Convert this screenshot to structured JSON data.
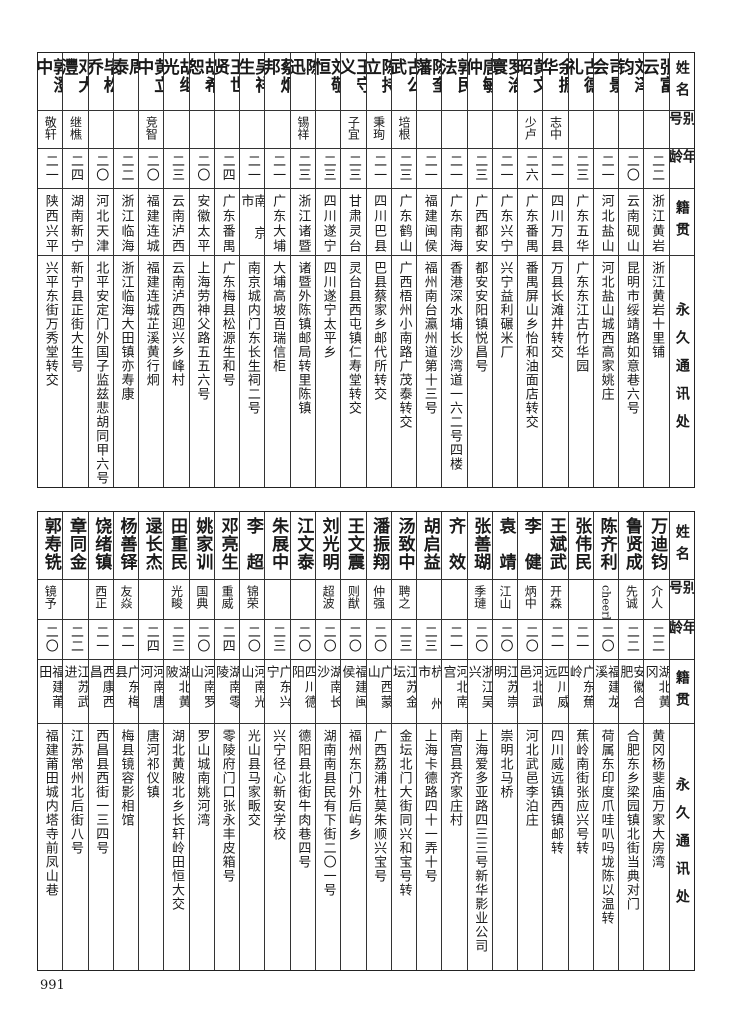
{
  "headers": [
    "姓名",
    "别号",
    "年龄",
    "籍贯",
    "永久通讯处"
  ],
  "top_table": [
    [
      "张富云",
      "",
      "二二",
      "浙江黄岩",
      "浙江黄岩十里铺"
    ],
    [
      "刘泽钧",
      "",
      "二〇",
      "云南砚山",
      "昆明市绥靖路如意巷六号"
    ],
    [
      "司景会",
      "",
      "二一",
      "河北盐山",
      "河北盐山城西高家姚庄"
    ],
    [
      "古德礼",
      "",
      "二三",
      "广东五华",
      "广东东江古竹华园"
    ],
    [
      "余振华",
      "志中",
      "二一",
      "四川万县",
      "万县长滩井转交"
    ],
    [
      "黄文昭",
      "少卢",
      "二六",
      "广东番禺",
      "番禺屏山乡怡和油面店转交"
    ],
    [
      "罗治寰",
      "",
      "二一",
      "广东兴宁",
      "兴宁益利碾米厂"
    ],
    [
      "唐敏仲",
      "",
      "二三",
      "广西都安",
      "都安安阳镇悦昌号"
    ],
    [
      "郭民法",
      "",
      "二一",
      "广东南海",
      "香港深水埔长沙湾道一六二号四楼"
    ],
    [
      "陈奎藩",
      "",
      "二一",
      "福建闽侯",
      "福州南台瀛州道第十三号"
    ],
    [
      "古公武",
      "培根",
      "二三",
      "广东鹤山",
      "广西梧州小南路广茂泰转交"
    ],
    [
      "陈持立",
      "秉珣",
      "二一",
      "四川巴县",
      "巴县蔡家乡邮代所转交"
    ],
    [
      "王守义",
      "子宜",
      "二三",
      "甘肃灵台",
      "灵台县西屯镇仁寿堂转交"
    ],
    [
      "刘敬恒",
      "",
      "二三",
      "四川遂宁",
      "四川遂宁太平乡"
    ],
    [
      "陈　迅",
      "锡祥",
      "二三",
      "浙江诸暨",
      "诸暨外陈镇邮局转里陈镇"
    ],
    [
      "蔡炯邦",
      "",
      "二一",
      "广东大埔",
      "大埔高坡百瑞信柜"
    ],
    [
      "吴祥生",
      "",
      "二一",
      "南 京 市",
      "南京城内门东长生祠二号"
    ],
    [
      "王世贤",
      "",
      "二四",
      "广东番禺",
      "广东梅县松源生和号"
    ],
    [
      "胡希恕",
      "",
      "二〇",
      "安徽太平",
      "上海劳神父路五五六号"
    ],
    [
      "胡继光",
      "",
      "二三",
      "云南泸西",
      "云南泸西迎兴乡峰村"
    ],
    [
      "黄立中",
      "竞智",
      "二〇",
      "福建连城",
      "福建连城芷溪黄行炯"
    ],
    [
      "周　泰",
      "",
      "二二",
      "浙江临海",
      "浙江临海大田镇亦寿康"
    ],
    [
      "毕松乔",
      "",
      "二〇",
      "河北天津",
      "北平安定门外国子监兹悲胡同甲六号"
    ],
    [
      "邓大灃",
      "继樵",
      "二四",
      "湖南新宁",
      "新宁县正街大生号"
    ],
    [
      "郭澄中",
      "敬轩",
      "二一",
      "陕西兴平",
      "兴平东街万秀堂转交"
    ]
  ],
  "bottom_table": [
    [
      "万迪钧",
      "介人",
      "二二",
      "湖北黄冈",
      "黄冈杨斐庙万家大房湾"
    ],
    [
      "鲁贤成",
      "先诚",
      "二二",
      "安徽合肥",
      "合肥东乡梁园镇北街当典对门"
    ],
    [
      "陈齐利",
      "cheerly",
      "二〇",
      "福建龙溪",
      "荷属东印度爪哇叭吗垅陈以温转"
    ],
    [
      "张伟民",
      "",
      "二一",
      "广东蕉岭",
      "蕉岭南街张应兴号转"
    ],
    [
      "王斌武",
      "开森",
      "二一",
      "四川威远",
      "四川威远镇西镇邮转"
    ],
    [
      "李　健",
      "炳中",
      "二〇",
      "河北武邑",
      "河北武邑李泊庄"
    ],
    [
      "袁　靖",
      "江山",
      "二〇",
      "江苏崇明",
      "崇明北马桥"
    ],
    [
      "张善瑚",
      "季璉",
      "二〇",
      "浙江吴兴",
      "上海爱多亚路四三三号新华影业公司"
    ],
    [
      "齐　效",
      "",
      "二一",
      "河北南宫",
      "南宫县齐家庄村"
    ],
    [
      "胡启益",
      "",
      "二三",
      "杭 州 市",
      "上海卡德路四十一弄十号"
    ],
    [
      "汤致中",
      "聘之",
      "二三",
      "江苏金坛",
      "金坛北门大街同兴和宝号转"
    ],
    [
      "潘振翔",
      "仲强",
      "二〇",
      "广西蒙山",
      "广西荔浦杜莫朱顺兴宝号"
    ],
    [
      "王文震",
      "则猷",
      "二〇",
      "福建闽侯",
      "福州东门外后屿乡"
    ],
    [
      "刘光明",
      "超波",
      "二〇",
      "湖南长沙",
      "湖南南县民有下街二〇一号"
    ],
    [
      "江文泰",
      "",
      "二〇",
      "四川德阳",
      "德阳县北街牛肉巷四号"
    ],
    [
      "朱展中",
      "",
      "二三",
      "广东兴宁",
      "兴宁径心新安学校"
    ],
    [
      "李　超",
      "锦荣",
      "二〇",
      "河南光山",
      "光山县马家畈交"
    ],
    [
      "邓亮生",
      "重威",
      "二四",
      "湖南零陵",
      "零陵府门口张永丰皮箱号"
    ],
    [
      "姚家训",
      "国典",
      "二〇",
      "河南罗山",
      "罗山城南姚河湾"
    ],
    [
      "田重民",
      "光畯",
      "二三",
      "湖北黄陂",
      "湖北黄陂北乡长轩岭田恒大交"
    ],
    [
      "逯长杰",
      "",
      "二四",
      "河南唐河",
      "唐河祁仪镇"
    ],
    [
      "杨善铎",
      "友焱",
      "二一",
      "广东梅县",
      "梅县镜容影相馆"
    ],
    [
      "饶绪镇",
      "西正",
      "二一",
      "西康西昌",
      "西昌县西街一三四号"
    ],
    [
      "章同金",
      "",
      "二二",
      "江苏武进",
      "江苏常州北后街八号"
    ],
    [
      "郭寿铣",
      "镜予",
      "二〇",
      "福建莆田",
      "福建莆田城内塔寺前凤山巷"
    ]
  ],
  "page_number": "991"
}
